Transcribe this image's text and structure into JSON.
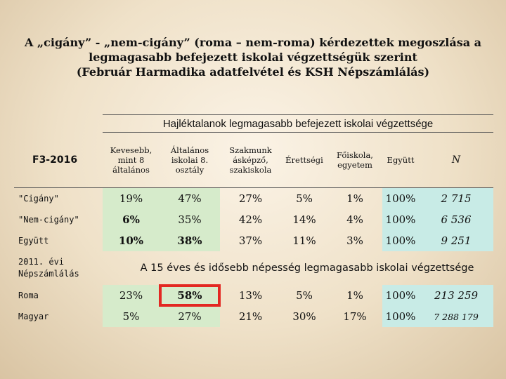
{
  "title": {
    "line1": "A „cigány” - „nem-cigány” (roma – nem-roma) kérdezettek megoszlása a",
    "line2": "legmagasabb befejezett iskolai végzettségük szerint",
    "line3": "(Február Harmadika adatfelvétel és KSH Népszámlálás)"
  },
  "table": {
    "span_header": "Hajléktalanok legmagasabb befejezett iskolai végzettsége",
    "corner_label": "F3-2016",
    "columns": [
      [
        "Kevesebb,",
        "mint 8",
        "általános"
      ],
      [
        "Általános",
        "iskolai 8.",
        "osztály"
      ],
      [
        "Szakmunk",
        "ásképző,",
        "szakiskola"
      ],
      [
        "Érettségi"
      ],
      [
        "Főiskola,",
        "egyetem"
      ],
      [
        "Együtt"
      ],
      [
        "N"
      ]
    ],
    "rows": [
      {
        "label": "\"Cigány\"",
        "values": [
          "19%",
          "47%",
          "27%",
          "5%",
          "1%",
          "100%",
          "2 715"
        ]
      },
      {
        "label": "\"Nem-cigány\"",
        "values": [
          "6%",
          "35%",
          "42%",
          "14%",
          "4%",
          "100%",
          "6 536"
        ]
      },
      {
        "label": "Együtt",
        "values": [
          "10%",
          "38%",
          "37%",
          "11%",
          "3%",
          "100%",
          "9 251"
        ]
      }
    ],
    "census_label_1": "2011. évi",
    "census_label_2": "Népszámlálás",
    "census_header": "A 15 éves és idősebb népesség legmagasabb iskolai végzettsége",
    "census_rows": [
      {
        "label": "Roma",
        "values": [
          "23%",
          "58%",
          "13%",
          "5%",
          "1%",
          "100%",
          "213 259"
        ]
      },
      {
        "label": "Magyar",
        "values": [
          "5%",
          "27%",
          "21%",
          "30%",
          "17%",
          "100%",
          "7 288 179"
        ]
      }
    ]
  },
  "colors": {
    "highlight_green": "#d6ebcb",
    "highlight_teal": "#c8ebe6",
    "red_box": "#e32822"
  }
}
